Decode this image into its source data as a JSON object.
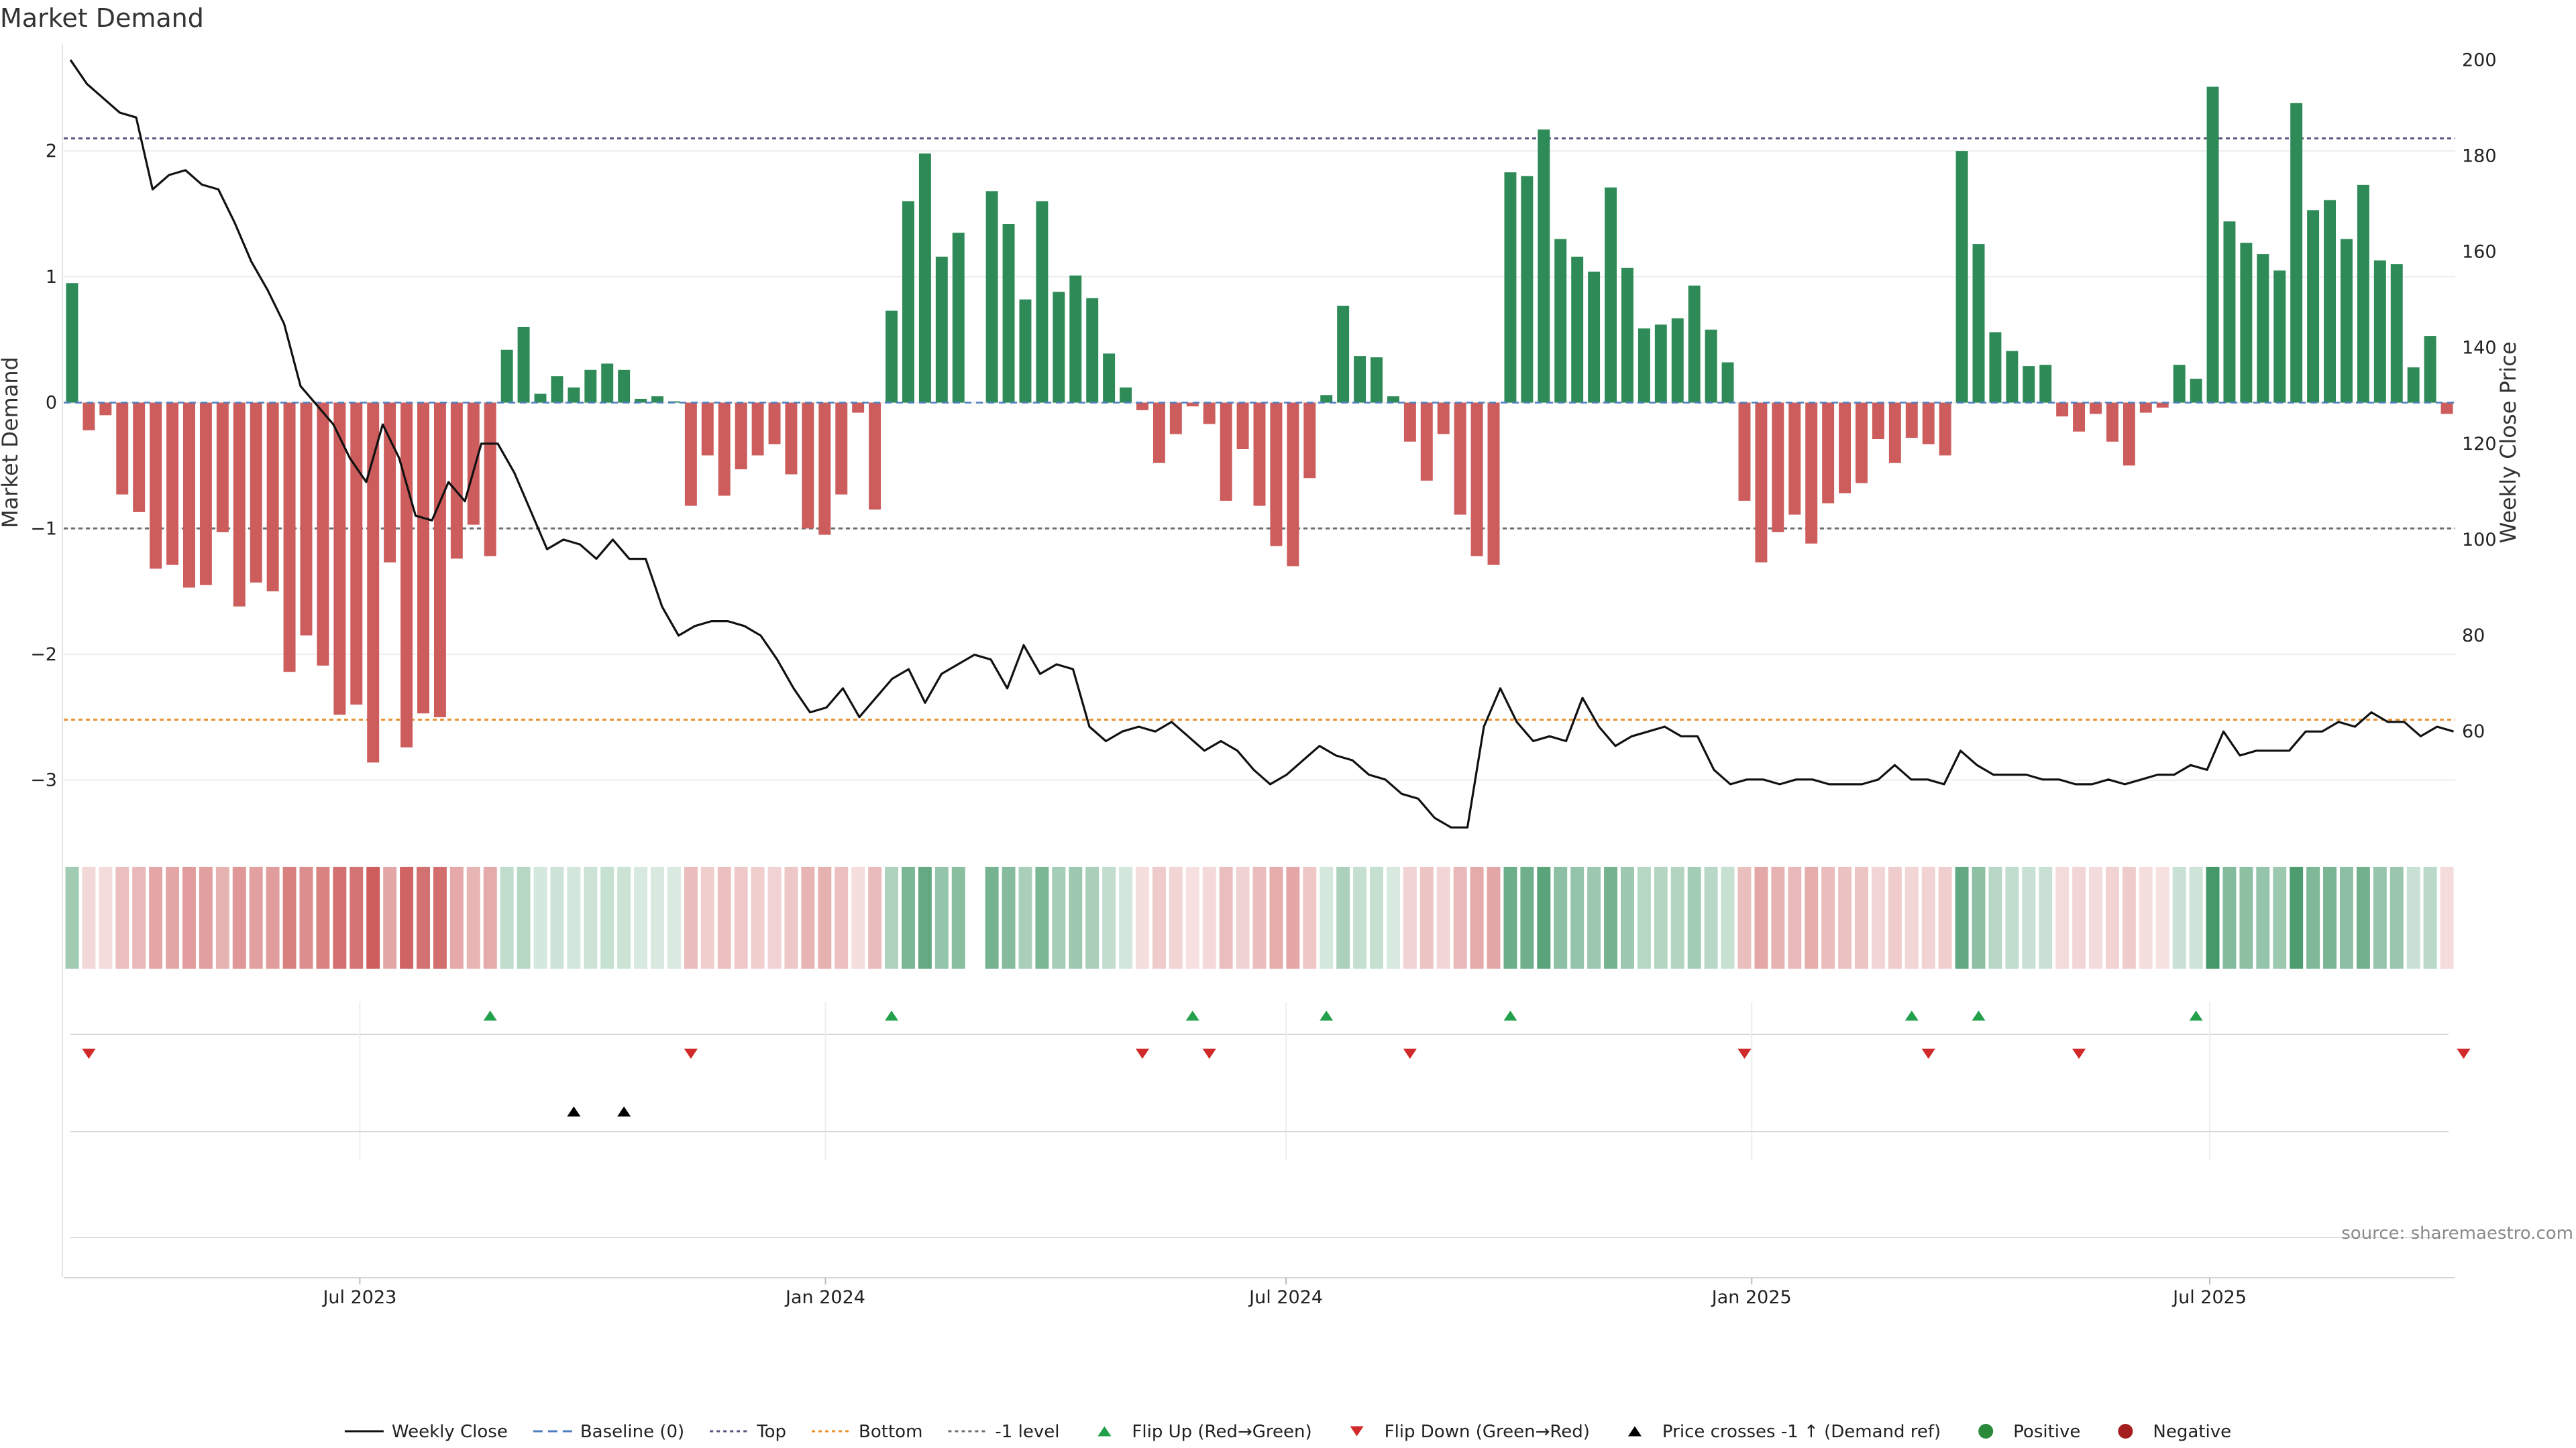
{
  "chart_data": {
    "type": "bar",
    "title": "Market Demand",
    "ylabel": "Market Demand",
    "ylabel_right": "Weekly Close Price",
    "ylim": [
      -3.3,
      2.8
    ],
    "ylim_right": [
      42,
      202
    ],
    "y_ticks": [
      -3,
      -2,
      -1,
      0,
      1,
      2
    ],
    "y_tick_labels": [
      "−3",
      "−2",
      "−1",
      "0",
      "1",
      "2"
    ],
    "y_ticks_right": [
      60,
      80,
      100,
      120,
      140,
      160,
      180,
      200
    ],
    "top_level": 2.1,
    "bottom_level": -2.52,
    "minus_one_level": -1,
    "x_start": "2023-03-06",
    "x_end": "2025-10-06",
    "x_ticks": [
      {
        "date": "2023-07-01",
        "label": "Jul 2023"
      },
      {
        "date": "2024-01-01",
        "label": "Jan 2024"
      },
      {
        "date": "2024-07-01",
        "label": "Jul 2024"
      },
      {
        "date": "2025-01-01",
        "label": "Jan 2025"
      },
      {
        "date": "2025-07-01",
        "label": "Jul 2025"
      }
    ],
    "demand": [
      0.95,
      -0.22,
      -0.1,
      -0.73,
      -0.87,
      -1.32,
      -1.29,
      -1.47,
      -1.45,
      -1.03,
      -1.62,
      -1.43,
      -1.5,
      -2.14,
      -1.85,
      -2.09,
      -2.48,
      -2.4,
      -2.86,
      -1.27,
      -2.74,
      -2.47,
      -2.5,
      -1.24,
      -0.97,
      -1.22,
      0.42,
      0.6,
      0.07,
      0.21,
      0.12,
      0.26,
      0.31,
      0.26,
      0.03,
      0.05,
      0.01,
      -0.82,
      -0.42,
      -0.74,
      -0.53,
      -0.42,
      -0.33,
      -0.57,
      -1.0,
      -1.05,
      -0.73,
      -0.08,
      -0.85,
      0.73,
      1.6,
      1.98,
      1.16,
      1.35,
      null,
      1.68,
      1.42,
      0.82,
      1.6,
      0.88,
      1.01,
      0.83,
      0.39,
      0.12,
      -0.06,
      -0.48,
      -0.25,
      -0.03,
      -0.17,
      -0.78,
      -0.37,
      -0.82,
      -1.14,
      -1.3,
      -0.6,
      0.06,
      0.77,
      0.37,
      0.36,
      0.05,
      -0.31,
      -0.62,
      -0.25,
      -0.89,
      -1.22,
      -1.29,
      1.83,
      1.8,
      2.17,
      1.3,
      1.16,
      1.04,
      1.71,
      1.07,
      0.59,
      0.62,
      0.67,
      0.93,
      0.58,
      0.32,
      -0.78,
      -1.27,
      -1.03,
      -0.89,
      -1.12,
      -0.8,
      -0.72,
      -0.64,
      -0.29,
      -0.48,
      -0.28,
      -0.33,
      -0.42,
      2.0,
      1.26,
      0.56,
      0.41,
      0.29,
      0.3,
      -0.11,
      -0.23,
      -0.09,
      -0.31,
      -0.5,
      -0.08,
      -0.04,
      0.3,
      0.19,
      2.51,
      1.44,
      1.27,
      1.18,
      1.05,
      2.38,
      1.53,
      1.61,
      1.3,
      1.73,
      1.13,
      1.1,
      0.28,
      0.53,
      -0.09
    ],
    "series": [
      {
        "name": "Weekly Close",
        "values": [
          200,
          195,
          192,
          189,
          188,
          173,
          176,
          177,
          174,
          173,
          166,
          158,
          152,
          145,
          132,
          128,
          124,
          117,
          112,
          124,
          117,
          105,
          104,
          112,
          108,
          120,
          120,
          114,
          106,
          98,
          100,
          99,
          96,
          100,
          96,
          96,
          86,
          80,
          82,
          83,
          83,
          82,
          80,
          75,
          69,
          64,
          65,
          69,
          63,
          67,
          71,
          73,
          66,
          72,
          74,
          76,
          75,
          69,
          78,
          72,
          74,
          73,
          61,
          58,
          60,
          61,
          60,
          62,
          59,
          56,
          58,
          56,
          52,
          49,
          51,
          54,
          57,
          55,
          54,
          51,
          50,
          47,
          46,
          42,
          40,
          40,
          61,
          69,
          62,
          58,
          59,
          58,
          67,
          61,
          57,
          59,
          60,
          61,
          59,
          59,
          52,
          49,
          50,
          50,
          49,
          50,
          50,
          49,
          49,
          49,
          50,
          53,
          50,
          50,
          49,
          56,
          53,
          51,
          51,
          51,
          50,
          50,
          49,
          49,
          50,
          49,
          50,
          51,
          51,
          53,
          52,
          60,
          55,
          56,
          56,
          56,
          60,
          60,
          62,
          61,
          64,
          62,
          62,
          59,
          61,
          60
        ]
      },
      {
        "name": "Baseline (0)"
      },
      {
        "name": "Top"
      },
      {
        "name": "Bottom"
      },
      {
        "name": "-1 level"
      }
    ],
    "flip_up_weeks": [
      25,
      49,
      67,
      75,
      86,
      110,
      114,
      127
    ],
    "flip_down_weeks": [
      1,
      37,
      64,
      68,
      80,
      100,
      111,
      120,
      143
    ],
    "price_cross_weeks": [
      30,
      33
    ],
    "legend": [
      {
        "label": "Weekly Close",
        "kind": "line",
        "color": "#111111"
      },
      {
        "label": "Baseline (0)",
        "kind": "dash",
        "color": "#4f7fc0"
      },
      {
        "label": "Top",
        "kind": "dot",
        "color": "#55557f"
      },
      {
        "label": "Bottom",
        "kind": "dot",
        "color": "#e8902a"
      },
      {
        "label": "-1 level",
        "kind": "dot",
        "color": "#6e6e6e"
      },
      {
        "label": "Flip Up (Red→Green)",
        "kind": "tri-up",
        "color": "#22a04b"
      },
      {
        "label": "Flip Down (Green→Red)",
        "kind": "tri-down",
        "color": "#d12a2a"
      },
      {
        "label": "Price crosses -1 ↑ (Demand ref)",
        "kind": "tri-up",
        "color": "#000000"
      },
      {
        "label": "Positive",
        "kind": "circle",
        "color": "#2a8a3a"
      },
      {
        "label": "Negative",
        "kind": "circle",
        "color": "#a51e1e"
      }
    ],
    "legend_position": "bottom-center",
    "grid": true
  },
  "colors": {
    "positive": "#2e8b57",
    "negative": "#cd5c5c",
    "price_line": "#111111",
    "top_line": "#55557f",
    "bottom_line": "#e8902a",
    "minus_one_line": "#6e6e6e",
    "flip_up": "#22a04b",
    "flip_down": "#d12a2a",
    "price_cross": "#000000"
  },
  "source_note": "source: sharemaestro.com"
}
